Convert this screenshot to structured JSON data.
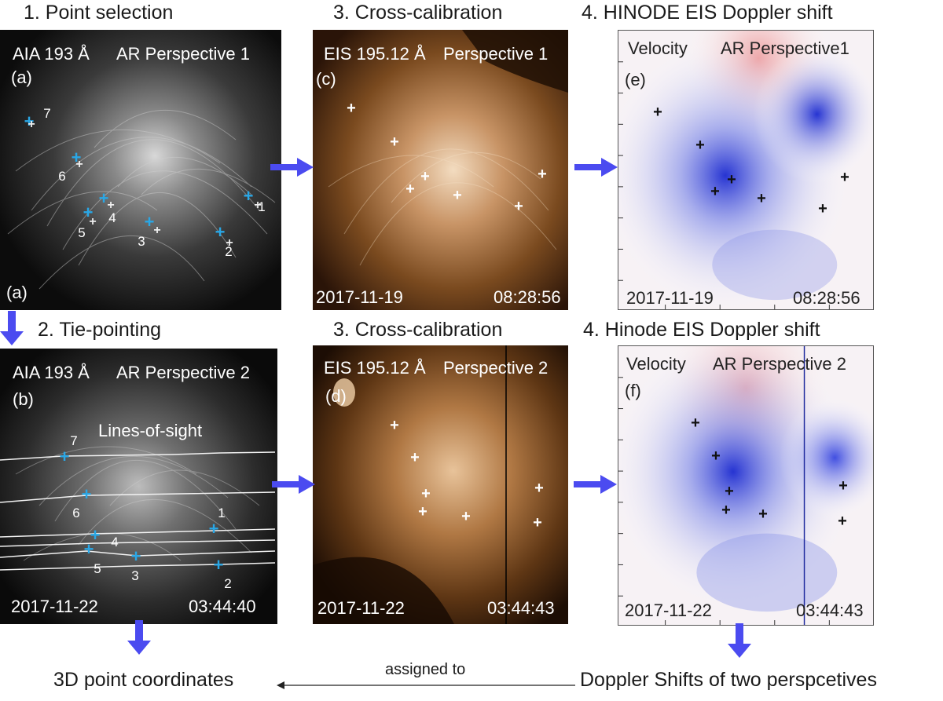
{
  "headings": {
    "h1": "1. Point selection",
    "h2": "2. Tie-pointing",
    "h3a": "3. Cross-calibration",
    "h3b": "3. Cross-calibration",
    "h4a": "4.  HINODE EIS Doppler shift",
    "h4b": "4.  Hinode EIS  Doppler shift"
  },
  "panel_a": {
    "instrument": "AIA 193 Å",
    "perspective": "AR Perspective 1",
    "tag": "(a)",
    "tag_bottom": "(a)",
    "point_labels": [
      "1",
      "2",
      "3",
      "4",
      "5",
      "6",
      "7"
    ]
  },
  "panel_b": {
    "instrument": "AIA 193 Å",
    "perspective": "AR Perspective 2",
    "tag": "(b)",
    "annotation": "Lines-of-sight",
    "date": "2017-11-22",
    "time": "03:44:40",
    "point_labels": [
      "1",
      "2",
      "3",
      "4",
      "5",
      "6",
      "7"
    ]
  },
  "panel_c": {
    "instrument": "EIS 195.12 Å",
    "perspective": "Perspective 1",
    "tag": "(c)",
    "date": "2017-11-19",
    "time": "08:28:56"
  },
  "panel_d": {
    "instrument": "EIS 195.12 Å",
    "perspective": "Perspective 2",
    "tag": "(d)",
    "date": "2017-11-22",
    "time": "03:44:43"
  },
  "panel_e": {
    "quantity": "Velocity",
    "perspective": "AR Perspective1",
    "tag": "(e)",
    "date": "2017-11-19",
    "time": "08:28:56"
  },
  "panel_f": {
    "quantity": "Velocity",
    "perspective": "AR Perspective 2",
    "tag": "(f)",
    "date": "2017-11-22",
    "time": "03:44:43"
  },
  "bottom": {
    "left": "3D point coordinates",
    "arrow_label": "assigned to",
    "right": "Doppler Shifts of two perspcetives"
  },
  "colors": {
    "arrow": "#4b4bf0",
    "cyan_marker": "#29a7e6",
    "eis_bg": "#6b3f16",
    "doppler_blue": "#2233dd",
    "doppler_red": "#e86a6a"
  }
}
